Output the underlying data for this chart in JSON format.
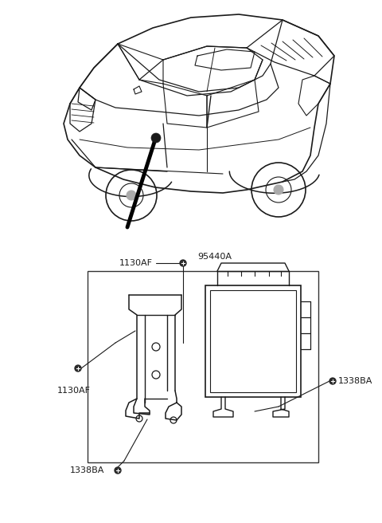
{
  "bg_color": "#ffffff",
  "line_color": "#1a1a1a",
  "figsize": [
    4.8,
    6.56
  ],
  "dpi": 100,
  "labels": {
    "1130AF_top": "1130AF",
    "95440A": "95440A",
    "1130AF_left": "1130AF",
    "1338BA_bottom": "1338BA",
    "1338BA_right": "1338BA"
  }
}
